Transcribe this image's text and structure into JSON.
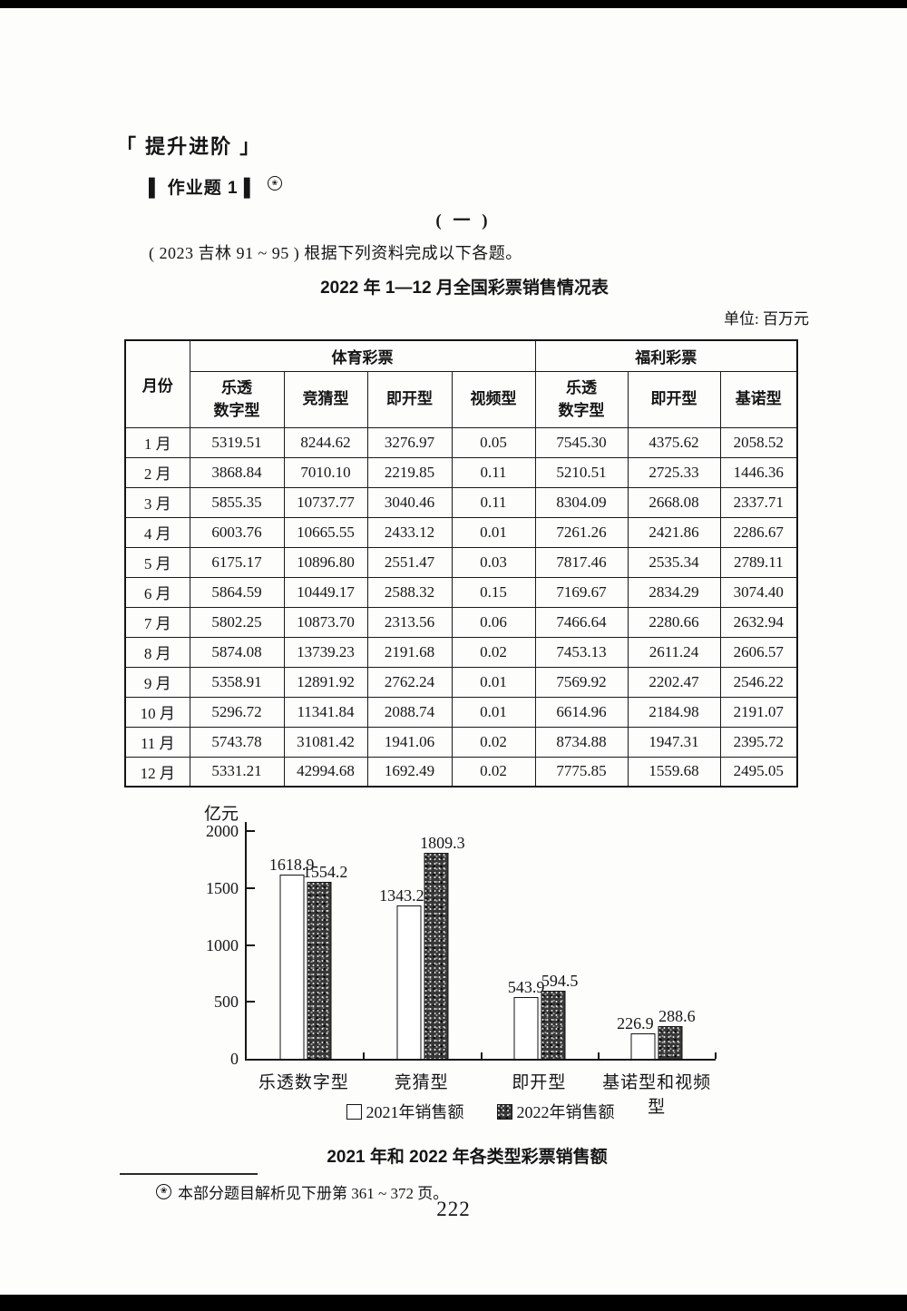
{
  "page": {
    "section_header": "「 提升进阶 」",
    "assignment_label": "▌ 作业题 1 ▌",
    "note_symbol": "❀",
    "part_label": "( 一 )",
    "intro": "( 2023 吉林 91 ~ 95 ) 根据下列资料完成以下各题。",
    "footnote": "本部分题目解析见下册第 361 ~ 372 页。",
    "page_number": "222"
  },
  "table": {
    "title": "2022 年 1—12 月全国彩票销售情况表",
    "unit_note": "单位: 百万元",
    "col_month": "月份",
    "group_headers": [
      "体育彩票",
      "福利彩票"
    ],
    "sub_headers": [
      "乐透\n数字型",
      "竞猜型",
      "即开型",
      "视频型",
      "乐透\n数字型",
      "即开型",
      "基诺型"
    ],
    "rows": [
      {
        "month": "1 月",
        "values": [
          "5319.51",
          "8244.62",
          "3276.97",
          "0.05",
          "7545.30",
          "4375.62",
          "2058.52"
        ]
      },
      {
        "month": "2 月",
        "values": [
          "3868.84",
          "7010.10",
          "2219.85",
          "0.11",
          "5210.51",
          "2725.33",
          "1446.36"
        ]
      },
      {
        "month": "3 月",
        "values": [
          "5855.35",
          "10737.77",
          "3040.46",
          "0.11",
          "8304.09",
          "2668.08",
          "2337.71"
        ]
      },
      {
        "month": "4 月",
        "values": [
          "6003.76",
          "10665.55",
          "2433.12",
          "0.01",
          "7261.26",
          "2421.86",
          "2286.67"
        ]
      },
      {
        "month": "5 月",
        "values": [
          "6175.17",
          "10896.80",
          "2551.47",
          "0.03",
          "7817.46",
          "2535.34",
          "2789.11"
        ]
      },
      {
        "month": "6 月",
        "values": [
          "5864.59",
          "10449.17",
          "2588.32",
          "0.15",
          "7169.67",
          "2834.29",
          "3074.40"
        ]
      },
      {
        "month": "7 月",
        "values": [
          "5802.25",
          "10873.70",
          "2313.56",
          "0.06",
          "7466.64",
          "2280.66",
          "2632.94"
        ]
      },
      {
        "month": "8 月",
        "values": [
          "5874.08",
          "13739.23",
          "2191.68",
          "0.02",
          "7453.13",
          "2611.24",
          "2606.57"
        ]
      },
      {
        "month": "9 月",
        "values": [
          "5358.91",
          "12891.92",
          "2762.24",
          "0.01",
          "7569.92",
          "2202.47",
          "2546.22"
        ]
      },
      {
        "month": "10 月",
        "values": [
          "5296.72",
          "11341.84",
          "2088.74",
          "0.01",
          "6614.96",
          "2184.98",
          "2191.07"
        ]
      },
      {
        "month": "11 月",
        "values": [
          "5743.78",
          "31081.42",
          "1941.06",
          "0.02",
          "8734.88",
          "1947.31",
          "2395.72"
        ]
      },
      {
        "month": "12 月",
        "values": [
          "5331.21",
          "42994.68",
          "1692.49",
          "0.02",
          "7775.85",
          "1559.68",
          "2495.05"
        ]
      }
    ]
  },
  "chart_data": {
    "type": "bar",
    "title": "2021 年和 2022 年各类型彩票销售额",
    "ylabel": "亿元",
    "categories": [
      "乐透数字型",
      "竞猜型",
      "即开型",
      "基诺型和视频型"
    ],
    "series": [
      {
        "name": "2021年销售额",
        "values": [
          1618.9,
          1343.2,
          543.9,
          226.9
        ]
      },
      {
        "name": "2022年销售额",
        "values": [
          1554.2,
          1809.3,
          594.5,
          288.6
        ]
      }
    ],
    "yticks": [
      0,
      500,
      1000,
      1500,
      2000
    ],
    "ylim": [
      0,
      2000
    ],
    "grid": false,
    "legend_position": "bottom"
  }
}
